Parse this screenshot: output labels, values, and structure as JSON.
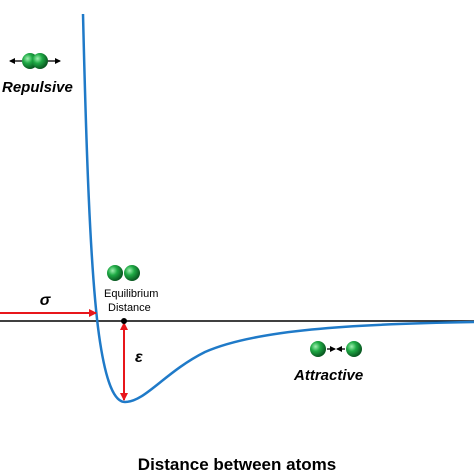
{
  "labels": {
    "repulsive": "Repulsive",
    "sigma": "σ",
    "equilibrium": [
      "Equilibrium",
      "Distance"
    ],
    "epsilon": "ε",
    "attractive": "Attractive"
  },
  "x_axis_label": "Distance between atoms"
}
